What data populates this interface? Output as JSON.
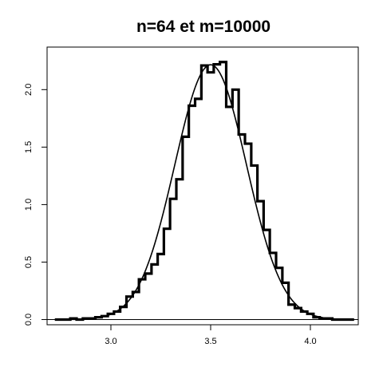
{
  "chart_data": {
    "type": "line",
    "title": "n=64 et m=10000",
    "xlabel": "",
    "ylabel": "",
    "xlim": [
      2.68,
      4.24
    ],
    "ylim": [
      -0.045,
      2.37
    ],
    "grid": false,
    "x_ticks": [
      {
        "value": 3.0,
        "label": "3.0"
      },
      {
        "value": 3.5,
        "label": "3.5"
      },
      {
        "value": 4.0,
        "label": "4.0"
      }
    ],
    "y_ticks": [
      {
        "value": 0.0,
        "label": "0.0"
      },
      {
        "value": 0.5,
        "label": "0.5"
      },
      {
        "value": 1.0,
        "label": "1.0"
      },
      {
        "value": 1.5,
        "label": "1.5"
      },
      {
        "value": 2.0,
        "label": "2.0"
      }
    ],
    "hline": 0,
    "series": [
      {
        "kind": "step",
        "x": [
          2.719,
          2.75,
          2.781,
          2.812,
          2.844,
          2.875,
          2.906,
          2.938,
          2.969,
          3.0,
          3.031,
          3.062,
          3.094,
          3.125,
          3.156,
          3.188,
          3.219,
          3.25,
          3.281,
          3.312,
          3.344,
          3.375,
          3.406,
          3.438,
          3.469,
          3.5,
          3.531,
          3.562,
          3.594,
          3.625,
          3.656,
          3.688,
          3.719,
          3.75,
          3.781,
          3.812,
          3.844,
          3.875,
          3.906,
          3.938,
          3.969,
          4.0,
          4.031,
          4.062,
          4.094,
          4.125,
          4.156,
          4.188,
          4.219
        ],
        "y": [
          0.0,
          0.0,
          0.0,
          0.01,
          0.0,
          0.01,
          0.01,
          0.02,
          0.03,
          0.05,
          0.07,
          0.11,
          0.2,
          0.24,
          0.35,
          0.4,
          0.48,
          0.57,
          0.79,
          1.05,
          1.22,
          1.59,
          1.86,
          1.92,
          2.21,
          2.15,
          2.22,
          2.24,
          1.85,
          2.0,
          1.61,
          1.53,
          1.34,
          1.03,
          0.78,
          0.58,
          0.45,
          0.32,
          0.13,
          0.1,
          0.07,
          0.05,
          0.02,
          0.01,
          0.01,
          0.0,
          0.0,
          0.0,
          0.0
        ]
      },
      {
        "kind": "density",
        "mean": 3.5,
        "sd": 0.18
      }
    ]
  }
}
